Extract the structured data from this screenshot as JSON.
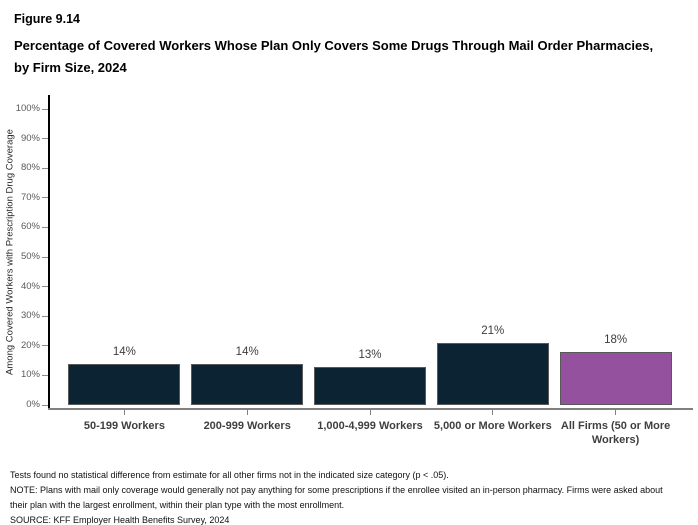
{
  "header": {
    "figure_label": "Figure 9.14",
    "title": "Percentage of Covered Workers Whose Plan Only Covers Some Drugs Through Mail Order Pharmacies, by Firm Size, 2024"
  },
  "chart_data": {
    "type": "bar",
    "title": "Percentage of Covered Workers Whose Plan Only Covers Some Drugs Through Mail Order Pharmacies, by Firm Size, 2024",
    "categories": [
      "50-199 Workers",
      "200-999 Workers",
      "1,000-4,999 Workers",
      "5,000 or More Workers",
      "All Firms (50 or More Workers)"
    ],
    "values": [
      14,
      14,
      13,
      21,
      18
    ],
    "value_labels": [
      "14%",
      "14%",
      "13%",
      "21%",
      "18%"
    ],
    "xlabel": "",
    "ylabel": "Among Covered Workers with Prescription Drug Coverage",
    "ylim": [
      0,
      100
    ],
    "ytick_step": 10,
    "ytick_suffix": "%",
    "grid": false,
    "legend": "none",
    "bar_colors": [
      "#0C2334",
      "#0C2334",
      "#0C2334",
      "#0C2334",
      "#94519E"
    ],
    "bar_border_color": "#595959",
    "axis_color": "#000000",
    "x_axis_line_color": "#808080"
  },
  "footnotes": [
    "Tests found no statistical difference from estimate for all other firms not in the indicated size category (p < .05).",
    "NOTE: Plans with mail only coverage would generally not pay anything for some prescriptions if the enrollee visited an in-person pharmacy.  Firms were asked about their plan with the largest enrollment, within their plan type with the most enrollment.",
    "SOURCE: KFF Employer Health Benefits Survey, 2024"
  ]
}
